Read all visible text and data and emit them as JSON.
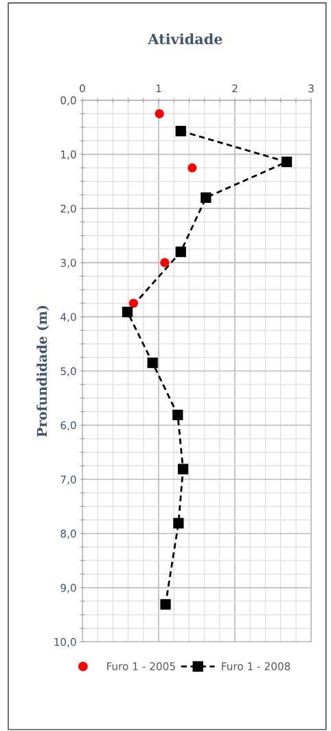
{
  "chart_data": {
    "type": "line",
    "title": "Atividade",
    "ylabel": "Profundidade (m)",
    "xlim": [
      0,
      3
    ],
    "ylim": [
      10,
      0
    ],
    "xticks": [
      0,
      {
        "value": 0.2,
        "label": null
      },
      {
        "value": 0.4,
        "label": null
      },
      {
        "value": 0.6,
        "label": null
      },
      {
        "value": 0.8,
        "label": null
      },
      1,
      {
        "value": 1.2,
        "label": null
      },
      {
        "value": 1.4,
        "label": null
      },
      {
        "value": 1.6,
        "label": null
      },
      {
        "value": 1.8,
        "label": null
      },
      2,
      {
        "value": 2.2,
        "label": null
      },
      {
        "value": 2.4,
        "label": null
      },
      {
        "value": 2.6,
        "label": null
      },
      {
        "value": 2.8,
        "label": null
      },
      3
    ],
    "yticks": [
      {
        "value": 0,
        "label": "0,0"
      },
      {
        "value": 0.25,
        "label": null
      },
      {
        "value": 0.5,
        "label": null
      },
      {
        "value": 0.75,
        "label": null
      },
      {
        "value": 1,
        "label": "1,0"
      },
      {
        "value": 1.25,
        "label": null
      },
      {
        "value": 1.5,
        "label": null
      },
      {
        "value": 1.75,
        "label": null
      },
      {
        "value": 2,
        "label": "2,0"
      },
      {
        "value": 2.25,
        "label": null
      },
      {
        "value": 2.5,
        "label": null
      },
      {
        "value": 2.75,
        "label": null
      },
      {
        "value": 3,
        "label": "3,0"
      },
      {
        "value": 3.25,
        "label": null
      },
      {
        "value": 3.5,
        "label": null
      },
      {
        "value": 3.75,
        "label": null
      },
      {
        "value": 4,
        "label": "4,0"
      },
      {
        "value": 4.25,
        "label": null
      },
      {
        "value": 4.5,
        "label": null
      },
      {
        "value": 4.75,
        "label": null
      },
      {
        "value": 5,
        "label": "5,0"
      },
      {
        "value": 5.25,
        "label": null
      },
      {
        "value": 5.5,
        "label": null
      },
      {
        "value": 5.75,
        "label": null
      },
      {
        "value": 6,
        "label": "6,0"
      },
      {
        "value": 6.25,
        "label": null
      },
      {
        "value": 6.5,
        "label": null
      },
      {
        "value": 6.75,
        "label": null
      },
      {
        "value": 7,
        "label": "7,0"
      },
      {
        "value": 7.25,
        "label": null
      },
      {
        "value": 7.5,
        "label": null
      },
      {
        "value": 7.75,
        "label": null
      },
      {
        "value": 8,
        "label": "8,0"
      },
      {
        "value": 8.25,
        "label": null
      },
      {
        "value": 8.5,
        "label": null
      },
      {
        "value": 8.75,
        "label": null
      },
      {
        "value": 9,
        "label": "9,0"
      },
      {
        "value": 9.25,
        "label": null
      },
      {
        "value": 9.5,
        "label": null
      },
      {
        "value": 9.75,
        "label": null
      },
      {
        "value": 10,
        "label": "10,0"
      }
    ],
    "grid": true,
    "legend": "bottom",
    "series": [
      {
        "name": "Furo 1 - 2005",
        "type": "scatter",
        "color": "#ff0000",
        "marker": "circle",
        "x": [
          1.01,
          1.44,
          1.08,
          0.67
        ],
        "values": [
          0.25,
          1.25,
          3.0,
          3.75
        ]
      },
      {
        "name": "Furo 1 - 2008",
        "color": "#000000",
        "marker": "square",
        "line_style": "dashed",
        "x": [
          1.29,
          2.68,
          1.62,
          1.29,
          0.59,
          0.92,
          1.25,
          1.32,
          1.26,
          1.09
        ],
        "values": [
          0.57,
          1.14,
          1.8,
          2.8,
          3.91,
          4.85,
          5.81,
          6.81,
          7.81,
          9.31
        ]
      }
    ]
  }
}
